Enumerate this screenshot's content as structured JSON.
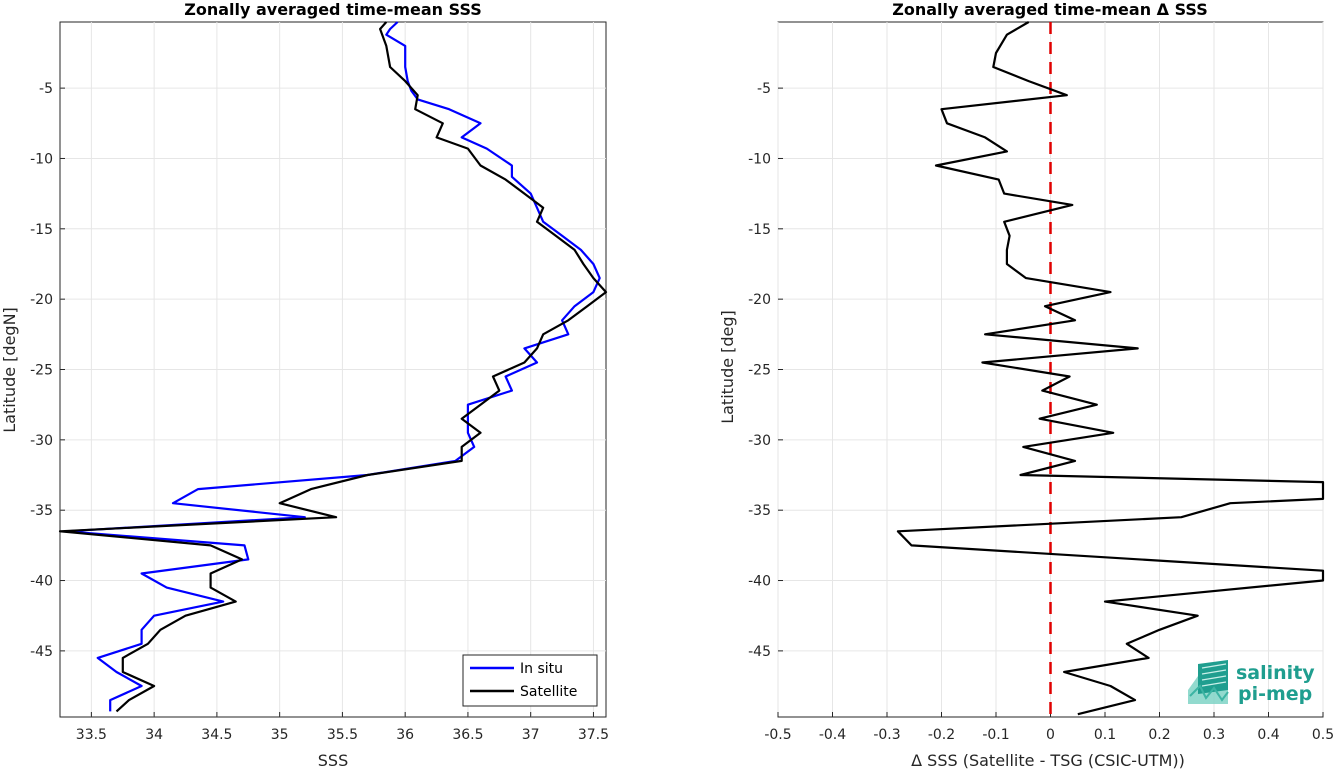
{
  "logo": {
    "line1": "salinity",
    "line2": "pi-mep",
    "color": "#1f9e8f"
  },
  "chart_data": [
    {
      "type": "line",
      "title": "Zonally averaged time-mean SSS",
      "xlabel": "SSS",
      "ylabel": "Latitude [degN]",
      "xlim": [
        33.25,
        37.6
      ],
      "ylim": [
        -49.7,
        -0.3
      ],
      "xticks": [
        33.5,
        34,
        34.5,
        35,
        35.5,
        36,
        36.5,
        37,
        37.5
      ],
      "xtick_labels": [
        "33.5",
        "34",
        "34.5",
        "35",
        "35.5",
        "36",
        "36.5",
        "37",
        "37.5"
      ],
      "yticks": [
        -5,
        -10,
        -15,
        -20,
        -25,
        -30,
        -35,
        -40,
        -45
      ],
      "ytick_labels": [
        "-5",
        "-10",
        "-15",
        "-20",
        "-25",
        "-30",
        "-35",
        "-40",
        "-45"
      ],
      "grid": true,
      "legend": "bottom-right",
      "series": [
        {
          "name": "In situ",
          "color": "#0000ff",
          "points": [
            [
              35.94,
              -0.3
            ],
            [
              35.88,
              -0.8
            ],
            [
              35.85,
              -1.2
            ],
            [
              36.0,
              -2.0
            ],
            [
              36.0,
              -3.5
            ],
            [
              36.02,
              -4.5
            ],
            [
              36.05,
              -5.2
            ],
            [
              36.1,
              -5.8
            ],
            [
              36.35,
              -6.5
            ],
            [
              36.6,
              -7.5
            ],
            [
              36.45,
              -8.5
            ],
            [
              36.65,
              -9.3
            ],
            [
              36.85,
              -10.5
            ],
            [
              36.85,
              -11.3
            ],
            [
              37.0,
              -12.5
            ],
            [
              37.05,
              -13.5
            ],
            [
              37.1,
              -14.5
            ],
            [
              37.25,
              -15.5
            ],
            [
              37.4,
              -16.5
            ],
            [
              37.5,
              -17.5
            ],
            [
              37.55,
              -18.5
            ],
            [
              37.5,
              -19.5
            ],
            [
              37.35,
              -20.5
            ],
            [
              37.25,
              -21.5
            ],
            [
              37.3,
              -22.5
            ],
            [
              36.95,
              -23.5
            ],
            [
              37.05,
              -24.5
            ],
            [
              36.8,
              -25.5
            ],
            [
              36.85,
              -26.5
            ],
            [
              36.5,
              -27.5
            ],
            [
              36.5,
              -28.5
            ],
            [
              36.5,
              -29.5
            ],
            [
              36.55,
              -30.5
            ],
            [
              36.4,
              -31.5
            ],
            [
              35.7,
              -32.5
            ],
            [
              34.35,
              -33.5
            ],
            [
              34.15,
              -34.5
            ],
            [
              35.2,
              -35.5
            ],
            [
              33.3,
              -36.5
            ],
            [
              34.72,
              -37.5
            ],
            [
              34.75,
              -38.5
            ],
            [
              33.9,
              -39.5
            ],
            [
              34.1,
              -40.5
            ],
            [
              34.55,
              -41.5
            ],
            [
              34.0,
              -42.5
            ],
            [
              33.9,
              -43.5
            ],
            [
              33.9,
              -44.5
            ],
            [
              33.55,
              -45.5
            ],
            [
              33.7,
              -46.5
            ],
            [
              33.9,
              -47.5
            ],
            [
              33.65,
              -48.5
            ],
            [
              33.65,
              -49.3
            ]
          ]
        },
        {
          "name": "Satellite",
          "color": "#000000",
          "points": [
            [
              35.85,
              -0.3
            ],
            [
              35.8,
              -0.8
            ],
            [
              35.85,
              -2.0
            ],
            [
              35.88,
              -3.5
            ],
            [
              36.0,
              -4.5
            ],
            [
              36.1,
              -5.5
            ],
            [
              36.08,
              -6.5
            ],
            [
              36.3,
              -7.5
            ],
            [
              36.25,
              -8.5
            ],
            [
              36.5,
              -9.3
            ],
            [
              36.6,
              -10.5
            ],
            [
              36.8,
              -11.5
            ],
            [
              36.95,
              -12.5
            ],
            [
              37.1,
              -13.5
            ],
            [
              37.05,
              -14.5
            ],
            [
              37.2,
              -15.5
            ],
            [
              37.35,
              -16.5
            ],
            [
              37.42,
              -17.5
            ],
            [
              37.5,
              -18.5
            ],
            [
              37.6,
              -19.5
            ],
            [
              37.45,
              -20.5
            ],
            [
              37.3,
              -21.5
            ],
            [
              37.1,
              -22.5
            ],
            [
              37.05,
              -23.5
            ],
            [
              36.95,
              -24.5
            ],
            [
              36.7,
              -25.5
            ],
            [
              36.75,
              -26.5
            ],
            [
              36.6,
              -27.5
            ],
            [
              36.45,
              -28.5
            ],
            [
              36.6,
              -29.5
            ],
            [
              36.45,
              -30.5
            ],
            [
              36.45,
              -31.5
            ],
            [
              35.7,
              -32.5
            ],
            [
              35.25,
              -33.5
            ],
            [
              35.0,
              -34.5
            ],
            [
              35.45,
              -35.5
            ],
            [
              33.25,
              -36.5
            ],
            [
              34.45,
              -37.5
            ],
            [
              34.7,
              -38.5
            ],
            [
              34.45,
              -39.5
            ],
            [
              34.45,
              -40.5
            ],
            [
              34.65,
              -41.5
            ],
            [
              34.25,
              -42.5
            ],
            [
              34.05,
              -43.5
            ],
            [
              33.95,
              -44.5
            ],
            [
              33.75,
              -45.5
            ],
            [
              33.75,
              -46.5
            ],
            [
              34.0,
              -47.5
            ],
            [
              33.8,
              -48.5
            ],
            [
              33.7,
              -49.3
            ]
          ]
        }
      ]
    },
    {
      "type": "line",
      "title": "Zonally averaged time-mean Δ SSS",
      "xlabel": "Δ SSS (Satellite - TSG (CSIC-UTM))",
      "ylabel": "Latitude [deg]",
      "xlim": [
        -0.5,
        0.5
      ],
      "ylim": [
        -49.7,
        -0.3
      ],
      "xticks": [
        -0.5,
        -0.4,
        -0.3,
        -0.2,
        -0.1,
        0,
        0.1,
        0.2,
        0.3,
        0.4,
        0.5
      ],
      "xtick_labels": [
        "-0.5",
        "-0.4",
        "-0.3",
        "-0.2",
        "-0.1",
        "0",
        "0.1",
        "0.2",
        "0.3",
        "0.4",
        "0.5"
      ],
      "yticks": [
        -5,
        -10,
        -15,
        -20,
        -25,
        -30,
        -35,
        -40,
        -45
      ],
      "ytick_labels": [
        "-5",
        "-10",
        "-15",
        "-20",
        "-25",
        "-30",
        "-35",
        "-40",
        "-45"
      ],
      "grid": true,
      "reference_line": {
        "x": 0,
        "color": "#e00000",
        "style": "dashed"
      },
      "series": [
        {
          "color": "#000000",
          "points": [
            [
              -0.04,
              -0.3
            ],
            [
              -0.08,
              -1.2
            ],
            [
              -0.1,
              -2.5
            ],
            [
              -0.105,
              -3.5
            ],
            [
              -0.04,
              -4.5
            ],
            [
              0.03,
              -5.5
            ],
            [
              -0.2,
              -6.5
            ],
            [
              -0.19,
              -7.5
            ],
            [
              -0.12,
              -8.5
            ],
            [
              -0.08,
              -9.5
            ],
            [
              -0.21,
              -10.5
            ],
            [
              -0.095,
              -11.5
            ],
            [
              -0.085,
              -12.5
            ],
            [
              0.04,
              -13.3
            ],
            [
              -0.085,
              -14.5
            ],
            [
              -0.075,
              -15.5
            ],
            [
              -0.08,
              -16.5
            ],
            [
              -0.08,
              -17.5
            ],
            [
              -0.045,
              -18.5
            ],
            [
              0.11,
              -19.5
            ],
            [
              -0.01,
              -20.5
            ],
            [
              0.045,
              -21.5
            ],
            [
              -0.12,
              -22.5
            ],
            [
              0.16,
              -23.5
            ],
            [
              -0.125,
              -24.5
            ],
            [
              0.035,
              -25.5
            ],
            [
              -0.015,
              -26.5
            ],
            [
              0.085,
              -27.5
            ],
            [
              -0.02,
              -28.5
            ],
            [
              0.115,
              -29.5
            ],
            [
              -0.05,
              -30.5
            ],
            [
              0.045,
              -31.5
            ],
            [
              -0.055,
              -32.5
            ],
            [
              0.5,
              -33.0
            ],
            [
              0.5,
              -34.2
            ],
            [
              0.33,
              -34.5
            ],
            [
              0.24,
              -35.5
            ],
            [
              -0.28,
              -36.5
            ],
            [
              -0.255,
              -37.5
            ],
            [
              0.5,
              -39.3
            ],
            [
              0.5,
              -40.0
            ],
            [
              0.1,
              -41.5
            ],
            [
              0.27,
              -42.5
            ],
            [
              0.2,
              -43.5
            ],
            [
              0.14,
              -44.5
            ],
            [
              0.18,
              -45.5
            ],
            [
              0.025,
              -46.5
            ],
            [
              0.11,
              -47.5
            ],
            [
              0.155,
              -48.5
            ],
            [
              0.05,
              -49.5
            ]
          ]
        }
      ]
    }
  ]
}
